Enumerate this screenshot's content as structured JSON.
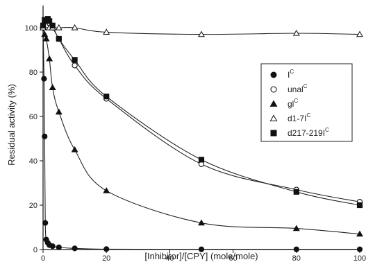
{
  "chart_data": {
    "type": "scatter",
    "xlabel": "[Inhibitor]/[CPY] (mole/mole)",
    "ylabel": "Residual activity (%)",
    "xlim": [
      0,
      100
    ],
    "ylim": [
      0,
      110
    ],
    "xticks": [
      0,
      20,
      40,
      60,
      80,
      100
    ],
    "yticks": [
      0,
      20,
      40,
      60,
      80,
      100
    ],
    "xtick_labels": [
      "0",
      "20",
      "40",
      "60",
      "80",
      "100"
    ],
    "ytick_labels": [
      "0",
      "20",
      "40",
      "60",
      "80",
      "100"
    ],
    "legend_position": "right",
    "series": [
      {
        "name": "I",
        "name_sup": "C",
        "marker": "circle-filled",
        "x": [
          0,
          0.3,
          0.5,
          0.7,
          1,
          1.5,
          2,
          3,
          5,
          10,
          20,
          50,
          80,
          100
        ],
        "y": [
          100,
          77,
          51,
          12,
          4.5,
          3,
          2,
          1.5,
          1,
          0.5,
          0.2,
          0.1,
          0.1,
          0.1
        ]
      },
      {
        "name": "unal",
        "name_sup": "C",
        "marker": "circle-open",
        "x": [
          0,
          0.5,
          1,
          1.5,
          2,
          3,
          5,
          10,
          20,
          50,
          80,
          100
        ],
        "y": [
          100,
          102,
          103,
          103,
          102,
          100,
          95,
          83,
          68,
          38.5,
          27,
          21.5
        ]
      },
      {
        "name": "gl",
        "name_sup": "C",
        "marker": "triangle-filled",
        "x": [
          0,
          0.5,
          1,
          2,
          3,
          5,
          10,
          20,
          50,
          80,
          100
        ],
        "y": [
          100,
          97,
          95,
          86,
          73,
          62,
          45,
          26.5,
          12,
          9.5,
          7
        ]
      },
      {
        "name": "d1-7I",
        "name_sup": "C",
        "marker": "triangle-open",
        "x": [
          0,
          0.5,
          1,
          2,
          3,
          5,
          10,
          20,
          50,
          80,
          100
        ],
        "y": [
          100,
          102,
          101,
          100,
          100,
          100,
          100,
          98,
          97,
          97.5,
          97
        ]
      },
      {
        "name": "d217-219I",
        "name_sup": "C",
        "marker": "square-filled",
        "x": [
          0,
          0.5,
          1,
          1.5,
          2,
          3,
          5,
          10,
          20,
          50,
          80,
          100
        ],
        "y": [
          101,
          103.5,
          103,
          104,
          103,
          101,
          95,
          85.5,
          69,
          40.5,
          26,
          20
        ]
      }
    ]
  }
}
